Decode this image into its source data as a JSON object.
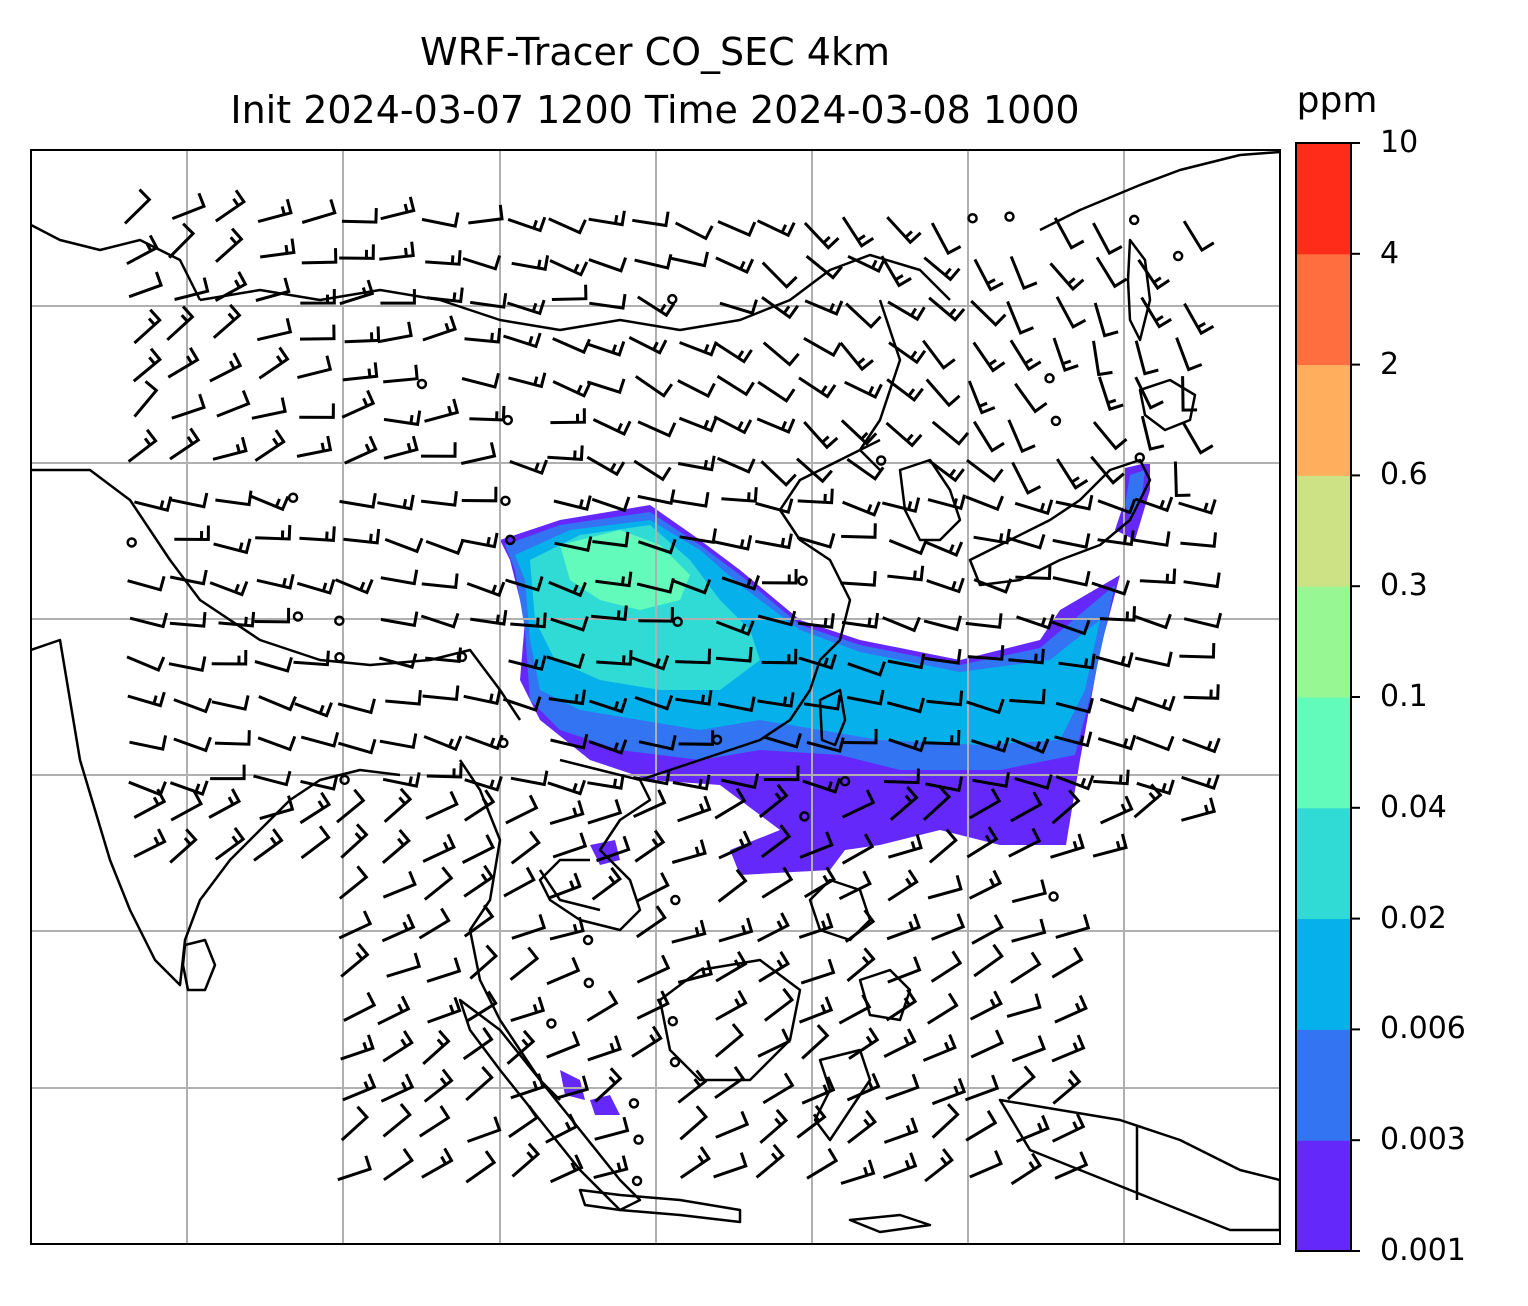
{
  "title": {
    "line1": "WRF-Tracer CO_SEC 4km",
    "line2": "Init 2024-03-07 1200 Time 2024-03-08 1000"
  },
  "colorbar": {
    "unit": "ppm",
    "levels": [
      "0.001",
      "0.003",
      "0.006",
      "0.02",
      "0.04",
      "0.1",
      "0.3",
      "0.6",
      "2",
      "4",
      "10"
    ],
    "colors": [
      "#6429fa",
      "#3374f2",
      "#05b0eb",
      "#30dbd6",
      "#63fbbb",
      "#97f893",
      "#cde284",
      "#ffae5e",
      "#ff6e3e",
      "#fe2c19"
    ]
  },
  "map": {
    "gridlines": true,
    "coastline_color": "#000000",
    "grid_color": "#b0b0b0",
    "wind_barbs": true
  }
}
